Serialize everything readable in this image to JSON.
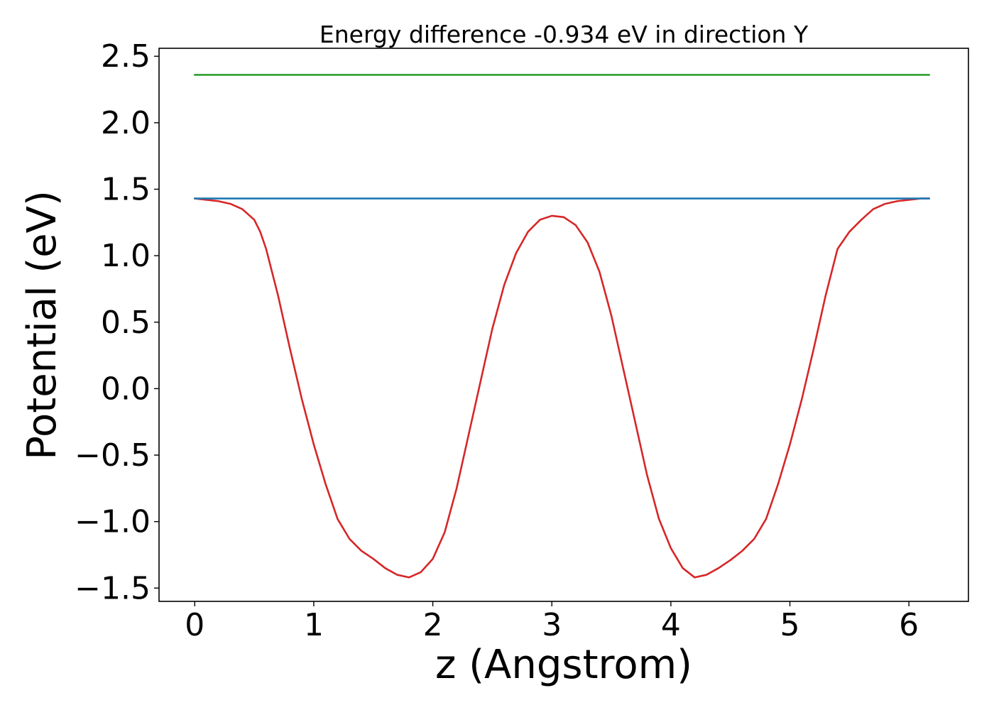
{
  "chart_data": {
    "type": "line",
    "title": "Energy difference -0.934 eV in direction Y",
    "xlabel": "z (Angstrom)",
    "ylabel": "Potential (eV)",
    "xlim": [
      -0.3,
      6.5
    ],
    "ylim": [
      -1.6,
      2.56
    ],
    "xticks": [
      0,
      1,
      2,
      3,
      4,
      5,
      6
    ],
    "xtick_labels": [
      "0",
      "1",
      "2",
      "3",
      "4",
      "5",
      "6"
    ],
    "yticks": [
      -1.5,
      -1.0,
      -0.5,
      0.0,
      0.5,
      1.0,
      1.5,
      2.0,
      2.5
    ],
    "ytick_labels": [
      "−1.5",
      "−1.0",
      "−0.5",
      "0.0",
      "0.5",
      "1.0",
      "1.5",
      "2.0",
      "2.5"
    ],
    "grid": false,
    "legend": false,
    "series": [
      {
        "color": "#d62728",
        "x": [
          0,
          0.1,
          0.2,
          0.3,
          0.4,
          0.5,
          0.55,
          0.6,
          0.7,
          0.8,
          0.9,
          1.0,
          1.1,
          1.2,
          1.3,
          1.4,
          1.5,
          1.6,
          1.7,
          1.8,
          1.9,
          2.0,
          2.1,
          2.2,
          2.3,
          2.4,
          2.5,
          2.6,
          2.7,
          2.8,
          2.9,
          3.0,
          3.1,
          3.2,
          3.3,
          3.4,
          3.5,
          3.6,
          3.7,
          3.8,
          3.9,
          4.0,
          4.1,
          4.2,
          4.3,
          4.4,
          4.5,
          4.6,
          4.7,
          4.8,
          4.9,
          5.0,
          5.1,
          5.2,
          5.3,
          5.4,
          5.5,
          5.6,
          5.7,
          5.8,
          5.9,
          6.0,
          6.1,
          6.17
        ],
        "y": [
          1.43,
          1.42,
          1.41,
          1.39,
          1.35,
          1.27,
          1.18,
          1.05,
          0.7,
          0.3,
          -0.08,
          -0.42,
          -0.72,
          -0.98,
          -1.13,
          -1.22,
          -1.28,
          -1.35,
          -1.4,
          -1.42,
          -1.38,
          -1.28,
          -1.08,
          -0.75,
          -0.35,
          0.05,
          0.45,
          0.78,
          1.02,
          1.18,
          1.27,
          1.3,
          1.29,
          1.23,
          1.1,
          0.88,
          0.55,
          0.15,
          -0.25,
          -0.65,
          -0.98,
          -1.2,
          -1.35,
          -1.42,
          -1.4,
          -1.35,
          -1.29,
          -1.22,
          -1.13,
          -0.98,
          -0.72,
          -0.42,
          -0.08,
          0.3,
          0.7,
          1.05,
          1.18,
          1.27,
          1.35,
          1.39,
          1.41,
          1.42,
          1.43,
          1.43
        ]
      },
      {
        "color": "#1f77b4",
        "x": [
          0,
          6.17
        ],
        "y": [
          1.43,
          1.43
        ]
      },
      {
        "color": "#2ca02c",
        "x": [
          0,
          6.17
        ],
        "y": [
          2.36,
          2.36
        ]
      }
    ]
  }
}
